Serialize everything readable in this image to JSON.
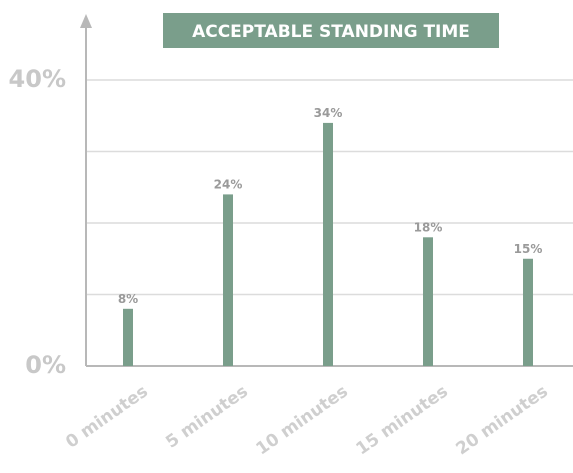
{
  "chart_data": {
    "type": "bar",
    "title": "ACCEPTABLE STANDING TIME",
    "categories": [
      "0 minutes",
      "5 minutes",
      "10 minutes",
      "15 minutes",
      "20 minutes"
    ],
    "values": [
      8,
      24,
      34,
      18,
      15
    ],
    "data_labels": [
      "8%",
      "24%",
      "34%",
      "18%",
      "15%"
    ],
    "ytick_labels": [
      "0%",
      "40%"
    ],
    "ylim": [
      0,
      40
    ],
    "grid": true,
    "gridlines_at": [
      10,
      20,
      30,
      40
    ],
    "bar_color": "#7a9e8b",
    "title_bg_color": "#7a9e8b",
    "axis_color": "#b8b8b8",
    "grid_color": "#dcdcdc"
  }
}
